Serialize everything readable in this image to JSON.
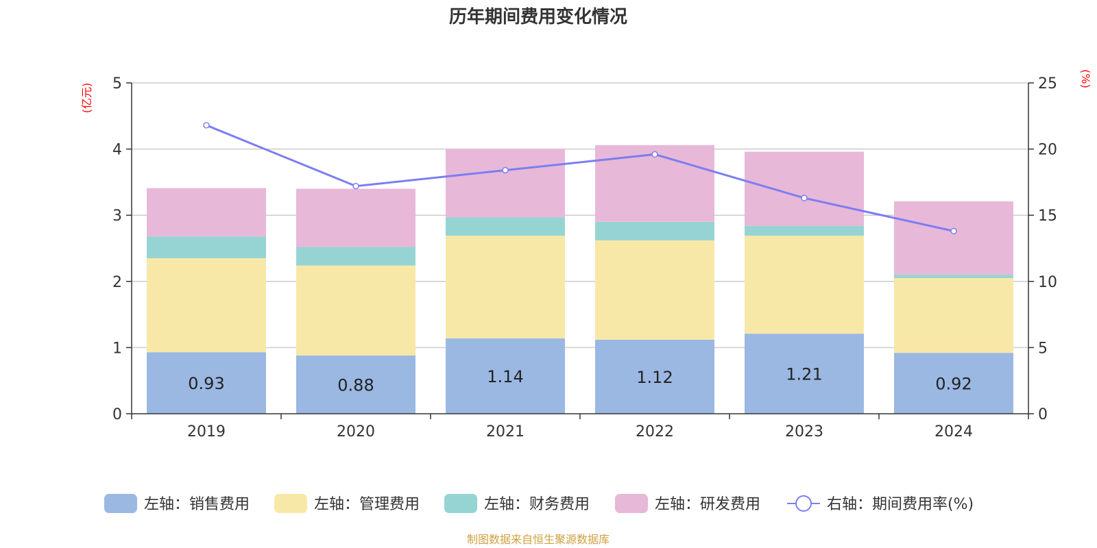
{
  "chart_data": {
    "type": "bar",
    "stacked": true,
    "title": "历年期间费用变化情况",
    "categories": [
      "2019",
      "2020",
      "2021",
      "2022",
      "2023",
      "2024"
    ],
    "left_axis": {
      "unit": "(亿元)",
      "ylim": [
        0,
        5
      ],
      "ticks": [
        "0",
        "1",
        "2",
        "3",
        "4",
        "5"
      ]
    },
    "right_axis": {
      "unit": "(%)",
      "ylim": [
        0,
        25
      ],
      "ticks": [
        "0",
        "5",
        "10",
        "15",
        "20",
        "25"
      ]
    },
    "grid": true,
    "legend_position": "bottom",
    "series": [
      {
        "name": "左轴：销售费用",
        "type": "bar",
        "axis": "left",
        "color": "#9bb8e3",
        "values": [
          0.93,
          0.88,
          1.14,
          1.12,
          1.21,
          0.92
        ],
        "labels": [
          "0.93",
          "0.88",
          "1.14",
          "1.12",
          "1.21",
          "0.92"
        ]
      },
      {
        "name": "左轴：管理费用",
        "type": "bar",
        "axis": "left",
        "color": "#f8e8a8",
        "values": [
          1.42,
          1.36,
          1.55,
          1.5,
          1.48,
          1.13
        ]
      },
      {
        "name": "左轴：财务费用",
        "type": "bar",
        "axis": "left",
        "color": "#96d4d4",
        "values": [
          0.33,
          0.28,
          0.28,
          0.28,
          0.15,
          0.05
        ]
      },
      {
        "name": "左轴：研发费用",
        "type": "bar",
        "axis": "left",
        "color": "#e8b8d8",
        "values": [
          0.73,
          0.88,
          1.03,
          1.16,
          1.12,
          1.11
        ]
      },
      {
        "name": "右轴：期间费用率(%)",
        "type": "line",
        "axis": "right",
        "color": "#7b7ef0",
        "values": [
          21.8,
          17.2,
          18.4,
          19.6,
          16.3,
          13.8
        ]
      }
    ],
    "source": "制图数据来自恒生聚源数据库"
  }
}
